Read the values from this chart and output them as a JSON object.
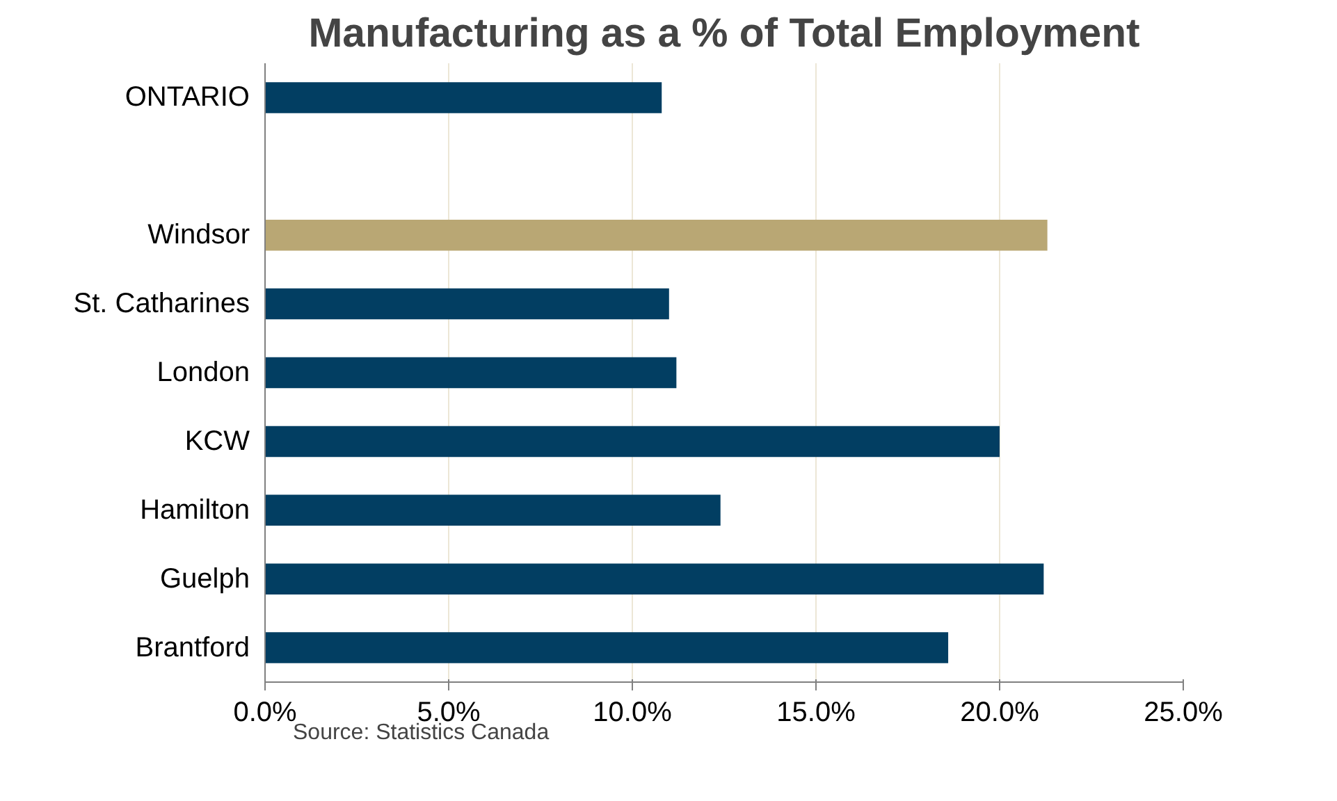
{
  "chart_data": {
    "type": "bar",
    "orientation": "horizontal",
    "title": "Manufacturing as a % of Total Employment",
    "categories": [
      "ONTARIO",
      null,
      "Windsor",
      "St. Catharines",
      "London",
      "KCW",
      "Hamilton",
      "Guelph",
      "Brantford"
    ],
    "values": [
      10.8,
      null,
      21.3,
      11.0,
      11.2,
      20.0,
      12.4,
      21.2,
      18.6
    ],
    "colors": [
      "#023e62",
      "#023e62",
      "#b9a774",
      "#023e62",
      "#023e62",
      "#023e62",
      "#023e62",
      "#023e62",
      "#023e62"
    ],
    "xlim": [
      0,
      25
    ],
    "xticks": [
      {
        "value": 0,
        "label": "0.0%"
      },
      {
        "value": 5,
        "label": "5.0%"
      },
      {
        "value": 10,
        "label": "10.0%"
      },
      {
        "value": 15,
        "label": "15.0%"
      },
      {
        "value": 20,
        "label": "20.0%"
      },
      {
        "value": 25,
        "label": "25.0%"
      }
    ],
    "grid": "x",
    "annotations": [
      "Source: Statistics Canada"
    ]
  }
}
